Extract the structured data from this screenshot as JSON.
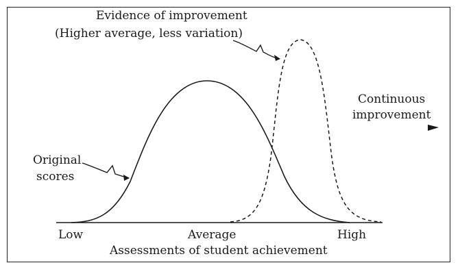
{
  "labels": {
    "evidence_line1": "Evidence of improvement",
    "evidence_line2": "(Higher average, less variation)",
    "continuous_line1": "Continuous",
    "continuous_line2": "improvement",
    "original_line1": "Original",
    "original_line2": "scores"
  },
  "axis": {
    "ticks": [
      "Low",
      "Average",
      "High"
    ],
    "title": "Assessments of student achievement"
  },
  "curves": [
    {
      "name": "Original scores",
      "style": "solid",
      "level": "average",
      "spread": "wide"
    },
    {
      "name": "Evidence of improvement",
      "style": "dashed",
      "level": "higher average",
      "spread": "narrow"
    }
  ],
  "colors": {
    "ink": "#1a1a1a",
    "background": "#ffffff"
  },
  "icons": [
    "squiggle-arrow-icon",
    "arrowhead-right-icon"
  ]
}
